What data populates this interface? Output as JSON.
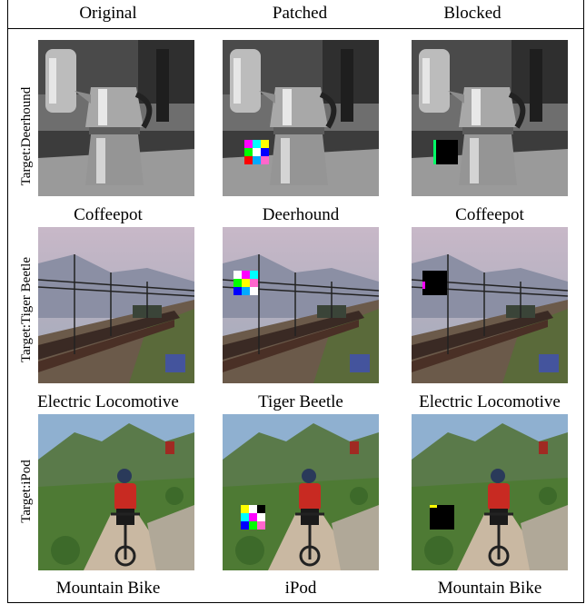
{
  "columns": [
    "Original",
    "Patched",
    "Blocked"
  ],
  "rows": [
    {
      "row_label": "Target:Deerhound",
      "captions": [
        "Coffeepot",
        "Deerhound",
        "Coffeepot"
      ],
      "scene": "coffeepot"
    },
    {
      "row_label": "Target:Tiger Beetle",
      "captions": [
        "Electric Locomotive",
        "Tiger Beetle",
        "Electric Locomotive"
      ],
      "scene": "locomotive"
    },
    {
      "row_label": "Target:iPod",
      "captions": [
        "Mountain Bike",
        "iPod",
        "Mountain Bike"
      ],
      "scene": "bike"
    }
  ]
}
